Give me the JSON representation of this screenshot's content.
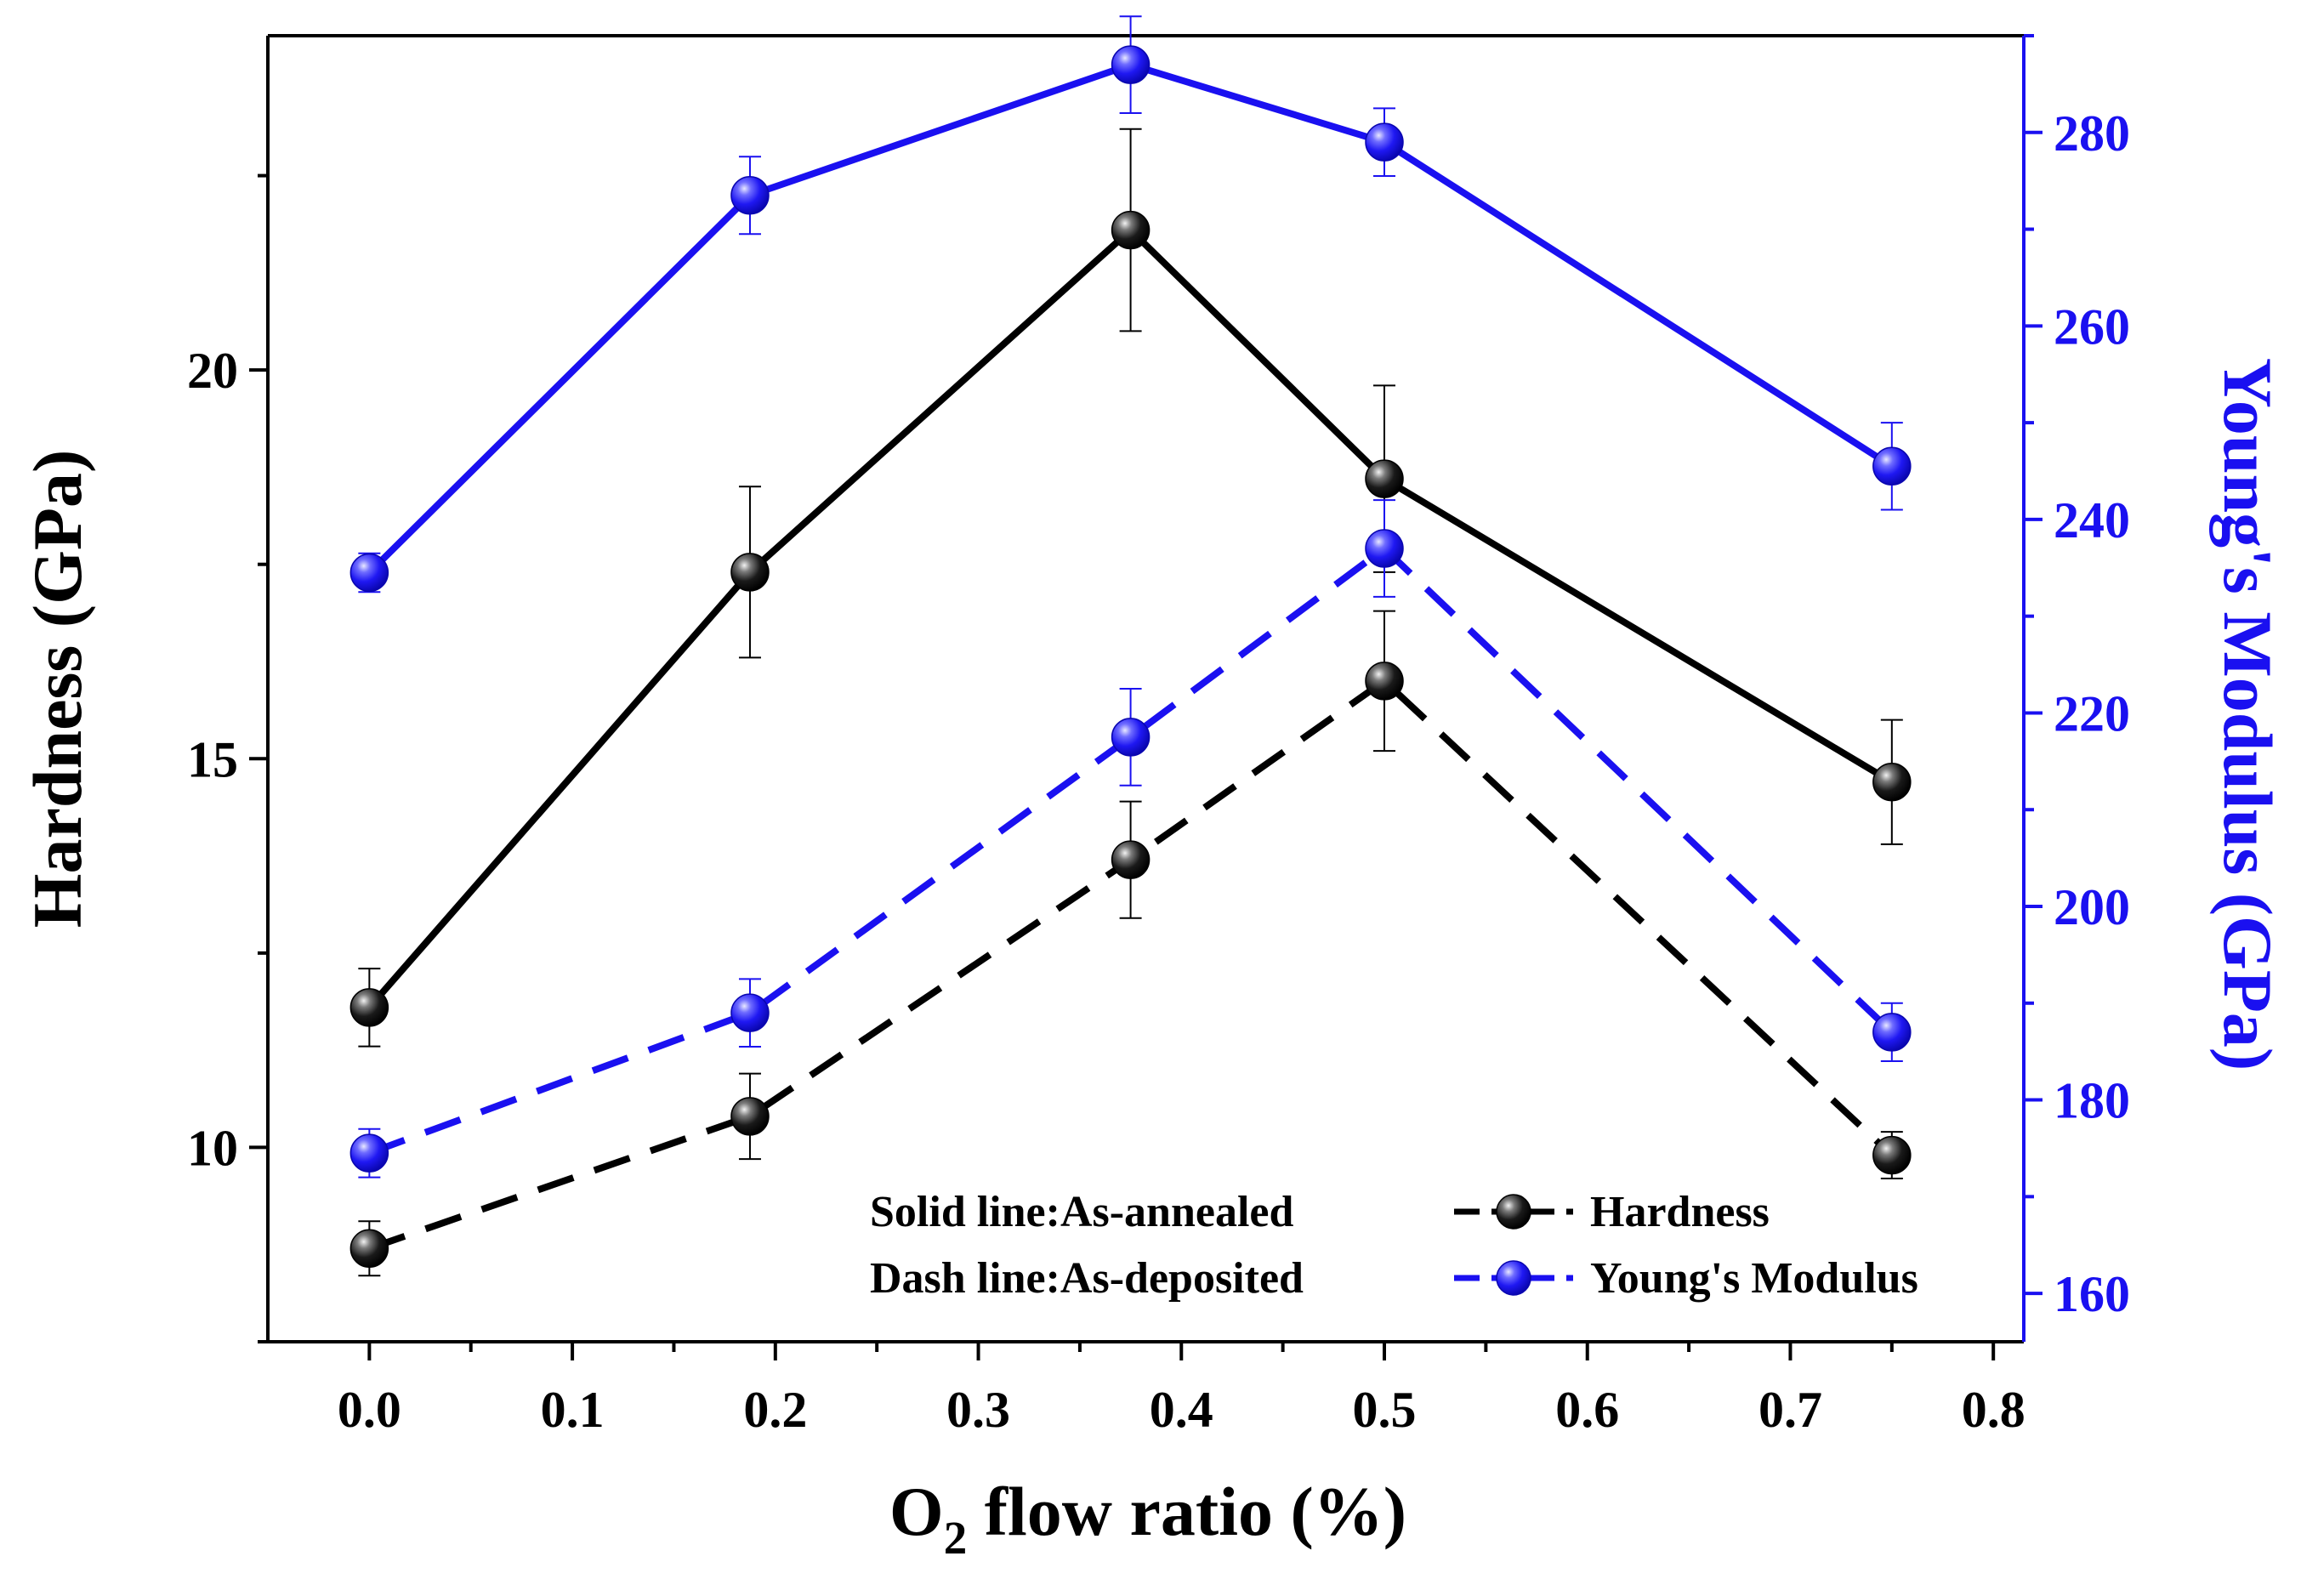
{
  "chart_data": {
    "type": "line",
    "xlabel": {
      "main": "O",
      "sub": "2",
      "rest": " flow ratio (%)"
    },
    "ylabel_left": "Hardness (GPa)",
    "ylabel_right": "Young's Modulus (GPa)",
    "x": [
      0.0,
      0.1875,
      0.375,
      0.5,
      0.75
    ],
    "xlim": [
      -0.05,
      0.815
    ],
    "ylim_left": [
      7.5,
      24.3
    ],
    "ylim_right": [
      155,
      290
    ],
    "x_ticks": [
      0.0,
      0.1,
      0.2,
      0.3,
      0.4,
      0.5,
      0.6,
      0.7,
      0.8
    ],
    "x_tick_labels": [
      "0.0",
      "0.1",
      "0.2",
      "0.3",
      "0.4",
      "0.5",
      "0.6",
      "0.7",
      "0.8"
    ],
    "left_ticks": [
      10,
      15,
      20
    ],
    "left_tick_labels": [
      "10",
      "15",
      "20"
    ],
    "right_ticks": [
      160,
      180,
      200,
      220,
      240,
      260,
      280
    ],
    "right_tick_labels": [
      "160",
      "180",
      "200",
      "220",
      "240",
      "260",
      "280"
    ],
    "series": [
      {
        "name": "Hardness (As-annealed)",
        "axis": "left",
        "style": "solid",
        "color": "#000000",
        "values": [
          11.8,
          17.4,
          21.8,
          18.6,
          14.7
        ],
        "errors": [
          0.5,
          1.1,
          1.3,
          1.2,
          0.8
        ]
      },
      {
        "name": "Hardness (As-deposited)",
        "axis": "left",
        "style": "dash",
        "color": "#000000",
        "values": [
          8.7,
          10.4,
          13.7,
          16.0,
          9.9
        ],
        "errors": [
          0.35,
          0.55,
          0.75,
          0.9,
          0.3
        ]
      },
      {
        "name": "Young's Modulus (As-annealed)",
        "axis": "right",
        "style": "solid",
        "color": "#1a10f0",
        "values": [
          234.5,
          273.5,
          287,
          279,
          245.5
        ],
        "errors": [
          2,
          4,
          5,
          3.5,
          4.5
        ]
      },
      {
        "name": "Young's Modulus (As-deposited)",
        "axis": "right",
        "style": "dash",
        "color": "#1a10f0",
        "values": [
          174.5,
          189,
          217.5,
          237,
          187
        ],
        "errors": [
          2.5,
          3.5,
          5,
          5,
          3
        ]
      }
    ],
    "legend": {
      "note_solid": "Solid line:As-annealed",
      "note_dash": "Dash line:As-deposited",
      "hardness": "Hardness",
      "modulus": "Young's Modulus",
      "placement": "bottom-right"
    },
    "colors": {
      "hardness": "#000000",
      "modulus": "#1a10f0"
    }
  }
}
